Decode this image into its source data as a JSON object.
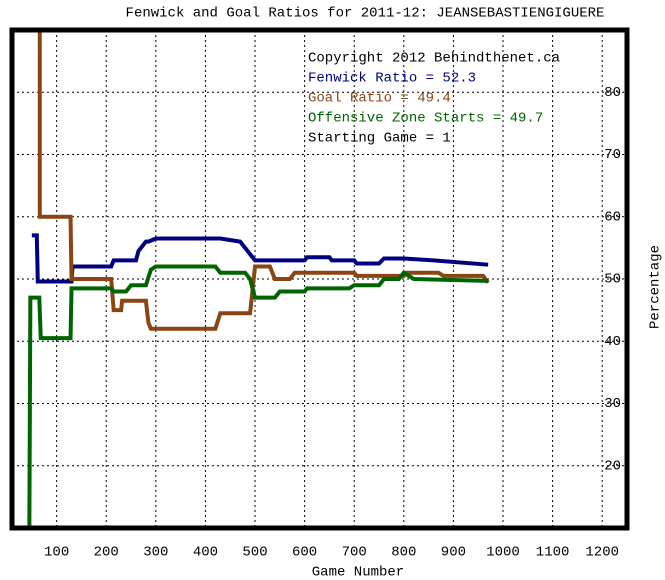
{
  "chart_data": {
    "type": "line",
    "title": "Fenwick and Goal Ratios for 2011-12: JEANSEBASTIENGIGUERE",
    "x_label": "Game Number",
    "y_label": "Percentage",
    "annotations": [
      {
        "text": "Copyright 2012 Behindthenet.ca",
        "color": "#000000"
      },
      {
        "text": "Fenwick Ratio = 52.3",
        "color": "#000080"
      },
      {
        "text": "Goal Ratio = 49.4",
        "color": "#8b4513"
      },
      {
        "text": "Offensive Zone Starts = 49.7",
        "color": "#006400"
      },
      {
        "text": "Starting Game = 1",
        "color": "#000000"
      }
    ],
    "xlim": [
      10,
      1250
    ],
    "ylim": [
      10,
      90
    ],
    "xticks": [
      100,
      200,
      300,
      400,
      500,
      600,
      700,
      800,
      900,
      1000,
      1100,
      1200
    ],
    "yticks": [
      20,
      30,
      40,
      50,
      60,
      70,
      80
    ],
    "grid": true,
    "series": [
      {
        "name": "Fenwick Ratio",
        "color": "#000080",
        "x": [
          50,
          60,
          62,
          130,
          132,
          210,
          215,
          260,
          265,
          280,
          285,
          300,
          430,
          470,
          490,
          500,
          600,
          605,
          650,
          655,
          700,
          705,
          750,
          760,
          800,
          860,
          970
        ],
        "values": [
          57,
          57,
          49.6,
          49.6,
          52,
          52,
          53,
          53,
          54.5,
          56,
          56,
          56.5,
          56.5,
          56,
          54,
          53,
          53,
          53.5,
          53.5,
          53,
          53,
          52.5,
          52.5,
          53.3,
          53.3,
          53,
          52.3
        ]
      },
      {
        "name": "Goal Ratio",
        "color": "#8b4513",
        "x": [
          66,
          66,
          128,
          130,
          210,
          215,
          230,
          232,
          280,
          285,
          290,
          420,
          430,
          490,
          500,
          530,
          540,
          570,
          580,
          700,
          705,
          800,
          805,
          870,
          880,
          960,
          970
        ],
        "values": [
          90,
          60,
          60,
          50,
          50,
          45,
          45,
          46.5,
          46.5,
          43,
          42,
          42,
          44.5,
          44.5,
          52,
          52,
          50,
          50,
          51,
          51,
          50.5,
          50.5,
          51,
          51,
          50.5,
          50.5,
          49.4
        ]
      },
      {
        "name": "Offensive Zone Starts",
        "color": "#006400",
        "x": [
          45,
          47,
          65,
          68,
          128,
          130,
          210,
          215,
          240,
          250,
          280,
          290,
          300,
          420,
          430,
          480,
          490,
          500,
          540,
          550,
          600,
          605,
          690,
          700,
          750,
          760,
          790,
          800,
          820,
          970
        ],
        "values": [
          10,
          47,
          47,
          40.5,
          40.5,
          48.5,
          48.5,
          48,
          48,
          49,
          49,
          51.5,
          52,
          52,
          51,
          51,
          50,
          47,
          47,
          48,
          48,
          48.5,
          48.5,
          49,
          49,
          50,
          50,
          51,
          50,
          49.7
        ]
      }
    ]
  }
}
